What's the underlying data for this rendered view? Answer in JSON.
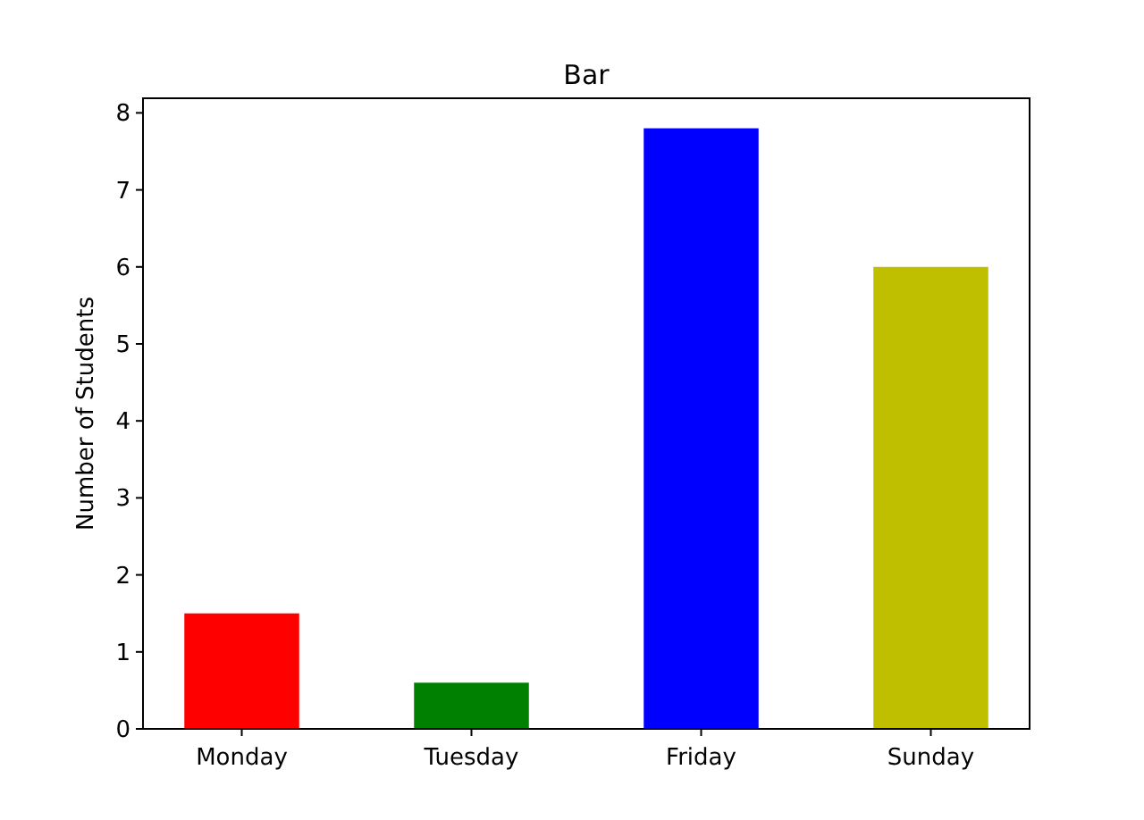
{
  "chart_data": {
    "type": "bar",
    "title": "Bar",
    "ylabel": "Number of Students",
    "categories": [
      "Monday",
      "Tuesday",
      "Friday",
      "Sunday"
    ],
    "values": [
      1.5,
      0.6,
      7.8,
      6.0
    ],
    "colors": [
      "#ff0000",
      "#008000",
      "#0000ff",
      "#bfbf00"
    ],
    "ylim": [
      0,
      8.19
    ],
    "yticks": [
      0,
      1,
      2,
      3,
      4,
      5,
      6,
      7,
      8
    ],
    "grid": false
  }
}
